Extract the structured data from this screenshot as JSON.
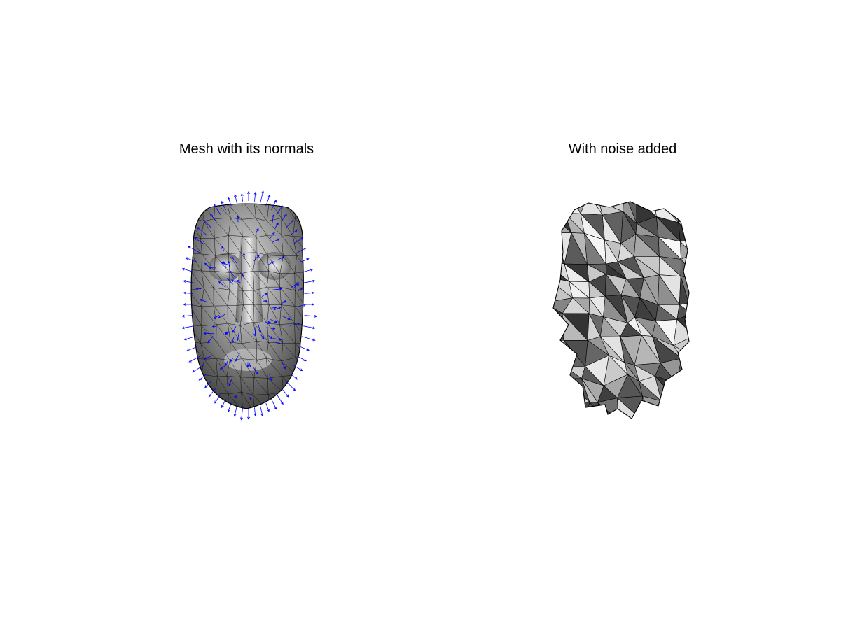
{
  "figure": {
    "panels": [
      {
        "title": "Mesh with its normals",
        "normals_color": "#0000ff"
      },
      {
        "title": "With noise added"
      }
    ],
    "colors": {
      "background": "#ffffff",
      "mesh_edges": "#000000",
      "shade_dark": "#3a3a3a",
      "shade_light": "#e8e8e8"
    }
  }
}
